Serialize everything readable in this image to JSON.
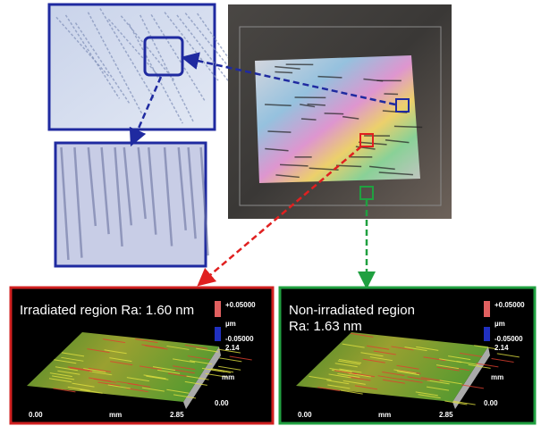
{
  "panels": [
    {
      "title_lines": [
        "Irradiated region Ra: 1.60 nm"
      ],
      "scale_top": "+0.05000",
      "scale_unit": "µm",
      "scale_bottom": "-0.05000",
      "y_max": "2.14",
      "y_unit": "mm",
      "y_min": "0.00",
      "x_min": "0.00",
      "x_unit": "mm",
      "x_max": "2.85"
    },
    {
      "title_lines": [
        "Non-irradiated region",
        "Ra: 1.63 nm"
      ],
      "scale_top": "+0.05000",
      "scale_unit": "µm",
      "scale_bottom": "-0.05000",
      "y_max": "2.14",
      "y_unit": "mm",
      "y_min": "0.00",
      "x_min": "0.00",
      "x_unit": "mm",
      "x_max": "2.85"
    }
  ]
}
